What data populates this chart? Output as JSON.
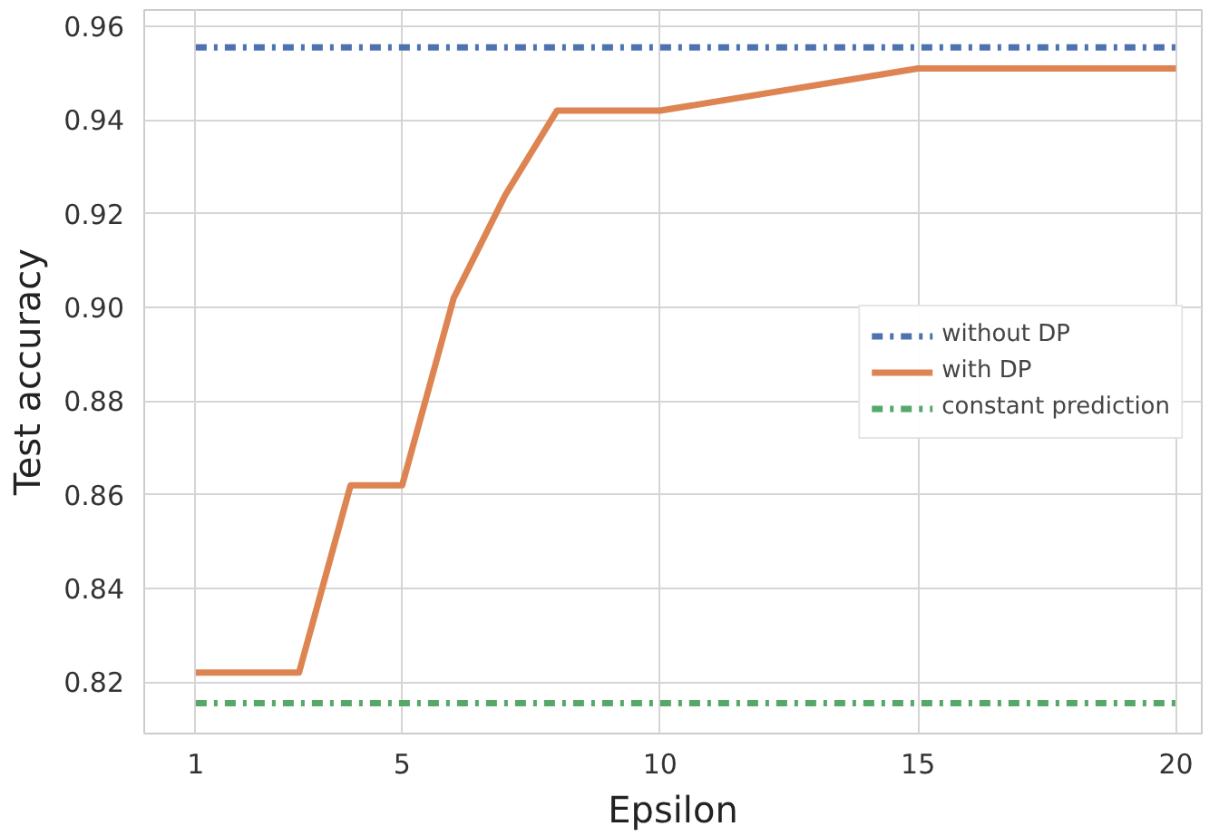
{
  "chart_data": {
    "type": "line",
    "xlabel": "Epsilon",
    "ylabel": "Test accuracy",
    "xlim": [
      0,
      20.5
    ],
    "ylim": [
      0.809,
      0.9635
    ],
    "xticks": [
      1,
      5,
      10,
      15,
      20
    ],
    "yticks": [
      0.82,
      0.84,
      0.86,
      0.88,
      {
        "value": 0.9,
        "label": "0.90"
      },
      0.92,
      0.94,
      0.96
    ],
    "grid": true,
    "legend": "right",
    "marker": "none",
    "series": [
      {
        "name": "without DP",
        "color": "#4c72b0",
        "x": [
          1,
          20
        ],
        "values": [
          0.9555,
          0.9555
        ],
        "line_style": "dashdot"
      },
      {
        "name": "with DP",
        "color": "#dd8452",
        "x": [
          1,
          2,
          3,
          4,
          5,
          6,
          7,
          8,
          10,
          15,
          20
        ],
        "values": [
          0.822,
          0.822,
          0.822,
          0.862,
          0.862,
          0.902,
          0.924,
          0.942,
          0.942,
          0.951,
          0.951
        ],
        "line_style": "solid"
      },
      {
        "name": "constant prediction",
        "color": "#55a868",
        "x": [
          1,
          20
        ],
        "values": [
          0.8155,
          0.8155
        ],
        "line_style": "dashdot"
      }
    ]
  }
}
